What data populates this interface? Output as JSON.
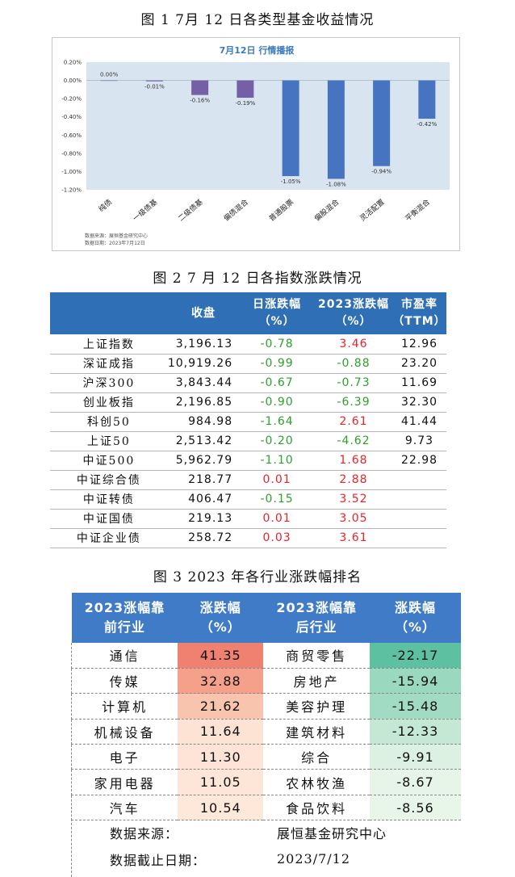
{
  "figure1": {
    "caption": "图 1   7月 12 日各类型基金收益情况",
    "chart_data": {
      "type": "bar",
      "title": "7月12日  行情播报",
      "categories": [
        "纯债",
        "一级债基",
        "二级债基",
        "偏债混合",
        "普通股票",
        "偏股混合",
        "灵活配置",
        "平衡混合"
      ],
      "values": [
        0.0,
        -0.01,
        -0.16,
        -0.19,
        -1.05,
        -1.08,
        -0.94,
        -0.42
      ],
      "value_labels": [
        "0.00%",
        "-0.01%",
        "-0.16%",
        "-0.19%",
        "-1.05%",
        "-1.08%",
        "-0.94%",
        "-0.42%"
      ],
      "ylim": [
        -1.2,
        0.2
      ],
      "yticks": [
        0.2,
        0.0,
        -0.2,
        -0.4,
        -0.6,
        -0.8,
        -1.0,
        -1.2
      ],
      "ytick_labels": [
        "0.20%",
        "0.00%",
        "-0.20%",
        "-0.40%",
        "-0.60%",
        "-0.80%",
        "-1.00%",
        "-1.20%"
      ],
      "colors": {
        "plot_bg": "#d9e4f1",
        "bar_small": "#7560a8",
        "bar_large": "#4674c0"
      },
      "footnotes": [
        "数据来源：展恒基金研究中心",
        "数据日期：2023年7月12日"
      ]
    }
  },
  "figure2": {
    "caption": "图 2   7 月 12 日各指数涨跌情况",
    "headers": [
      {
        "line1": "",
        "line2": ""
      },
      {
        "line1": "收盘",
        "line2": ""
      },
      {
        "line1": "日涨跌幅",
        "line2": "（%）"
      },
      {
        "line1": "2023涨跌幅",
        "line2": "（%）"
      },
      {
        "line1": "市盈率",
        "line2": "（TTM）"
      }
    ],
    "rows": [
      {
        "name": "上证指数",
        "close": "3,196.13",
        "day": "-0.78",
        "ytd": "3.46",
        "pe": "12.96"
      },
      {
        "name": "深证成指",
        "close": "10,919.26",
        "day": "-0.99",
        "ytd": "-0.88",
        "pe": "23.20"
      },
      {
        "name": "沪深300",
        "close": "3,843.44",
        "day": "-0.67",
        "ytd": "-0.73",
        "pe": "11.69"
      },
      {
        "name": "创业板指",
        "close": "2,196.85",
        "day": "-0.90",
        "ytd": "-6.39",
        "pe": "32.30"
      },
      {
        "name": "科创50",
        "close": "984.98",
        "day": "-1.64",
        "ytd": "2.61",
        "pe": "41.44"
      },
      {
        "name": "上证50",
        "close": "2,513.42",
        "day": "-0.20",
        "ytd": "-4.62",
        "pe": "9.73"
      },
      {
        "name": "中证500",
        "close": "5,962.79",
        "day": "-1.10",
        "ytd": "1.68",
        "pe": "22.98"
      },
      {
        "name": "中证综合债",
        "close": "218.77",
        "day": "0.01",
        "ytd": "2.88",
        "pe": ""
      },
      {
        "name": "中证转债",
        "close": "406.47",
        "day": "-0.15",
        "ytd": "3.52",
        "pe": ""
      },
      {
        "name": "中证国债",
        "close": "219.13",
        "day": "0.01",
        "ytd": "3.05",
        "pe": ""
      },
      {
        "name": "中证企业债",
        "close": "258.72",
        "day": "0.03",
        "ytd": "3.61",
        "pe": ""
      }
    ],
    "colors": {
      "header_bg": "#2e6fb5",
      "negative": "#2ca02c",
      "positive": "#e8232a"
    }
  },
  "figure3": {
    "caption": "图 3   2023 年各行业涨跌幅排名",
    "headers": [
      {
        "line1": "2023涨幅靠",
        "line2": "前行业"
      },
      {
        "line1": "涨跌幅",
        "line2": "（%）"
      },
      {
        "line1": "2023涨幅靠",
        "line2": "后行业"
      },
      {
        "line1": "涨跌幅",
        "line2": "（%）"
      }
    ],
    "rows": [
      {
        "top_ind": "通信",
        "top_val": "41.35",
        "top_color": "#f08070",
        "bot_ind": "商贸零售",
        "bot_val": "-22.17",
        "bot_color": "#5dc0a0"
      },
      {
        "top_ind": "传媒",
        "top_val": "32.88",
        "top_color": "#f4a08a",
        "bot_ind": "房地产",
        "bot_val": "-15.94",
        "bot_color": "#9ad8c0"
      },
      {
        "top_ind": "计算机",
        "top_val": "21.62",
        "top_color": "#f8c4ae",
        "bot_ind": "美容护理",
        "bot_val": "-15.48",
        "bot_color": "#a2dbc4"
      },
      {
        "top_ind": "机械设备",
        "top_val": "11.64",
        "top_color": "#fde3d4",
        "bot_ind": "建筑材料",
        "bot_val": "-12.33",
        "bot_color": "#c4e8d4"
      },
      {
        "top_ind": "电子",
        "top_val": "11.30",
        "top_color": "#fde4d6",
        "bot_ind": "综合",
        "bot_val": "-9.91",
        "bot_color": "#dcf1e2"
      },
      {
        "top_ind": "家用电器",
        "top_val": "11.05",
        "top_color": "#fde6d8",
        "bot_ind": "农林牧渔",
        "bot_val": "-8.67",
        "bot_color": "#e6f5e8"
      },
      {
        "top_ind": "汽车",
        "top_val": "10.54",
        "top_color": "#fde8da",
        "bot_ind": "食品饮料",
        "bot_val": "-8.56",
        "bot_color": "#e8f6ea"
      }
    ],
    "source_label": "数据来源：",
    "source_value": "展恒基金研究中心",
    "date_label": "数据截止日期：",
    "date_value": "2023/7/12",
    "colors": {
      "header_bg": "#3f7bc6"
    }
  }
}
